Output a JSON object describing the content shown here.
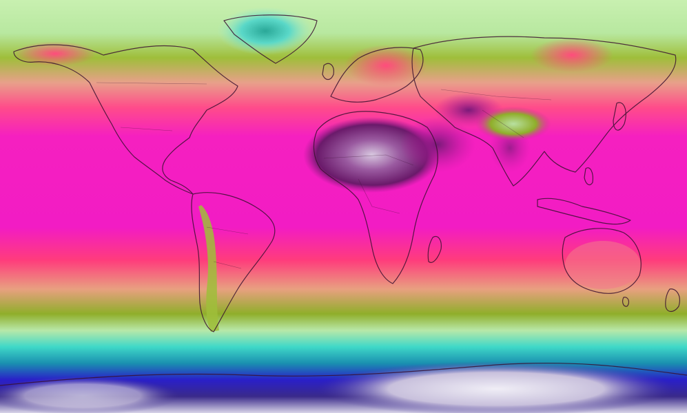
{
  "map": {
    "kind": "global temperature map",
    "projection": "equirectangular",
    "labels": [],
    "palette": {
      "coldest": "#e8e4f0",
      "very_cold": "#2a1fc8",
      "cold": "#3fd8c8",
      "cool": "#b8e8a8",
      "mild": "#8fae2a",
      "warm": "#e8908a",
      "hot": "#ff3c8c",
      "very_hot": "#f01ec8",
      "hottest": "#6a1a6a",
      "coastline": "#3a1030"
    },
    "legend_shown": false
  }
}
